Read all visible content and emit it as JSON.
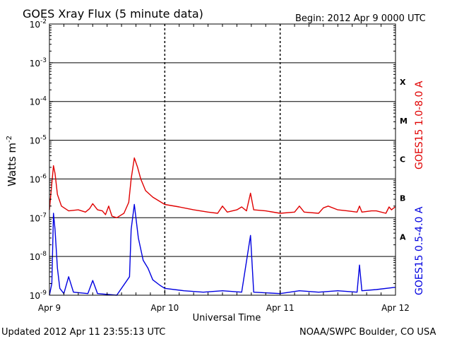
{
  "header": {
    "title": "GOES Xray Flux (5 minute data)",
    "begin": "Begin:  2012 Apr 9 0000 UTC"
  },
  "footer": {
    "updated": "Updated 2012 Apr 11 23:55:13 UTC",
    "credit": "NOAA/SWPC Boulder, CO USA"
  },
  "chart_data": {
    "type": "line",
    "title": "GOES Xray Flux (5 minute data)",
    "xlabel": "Universal Time",
    "ylabel": "Watts m",
    "ylabel_superscript": "-2",
    "yscale": "log",
    "xlim": [
      "2012-04-09T00:00",
      "2012-04-12T00:00"
    ],
    "ylim": [
      1e-09,
      0.01
    ],
    "x_ticks": [
      "Apr 9",
      "Apr 10",
      "Apr 11",
      "Apr 12"
    ],
    "y_ticks": [
      {
        "base": "10",
        "exp": "-9",
        "value": 1e-09
      },
      {
        "base": "10",
        "exp": "-8",
        "value": 1e-08
      },
      {
        "base": "10",
        "exp": "-7",
        "value": 1e-07
      },
      {
        "base": "10",
        "exp": "-6",
        "value": 1e-06
      },
      {
        "base": "10",
        "exp": "-5",
        "value": 1e-05
      },
      {
        "base": "10",
        "exp": "-4",
        "value": 0.0001
      },
      {
        "base": "10",
        "exp": "-3",
        "value": 0.001
      },
      {
        "base": "10",
        "exp": "-2",
        "value": 0.01
      }
    ],
    "flare_classes": [
      {
        "label": "A",
        "value": 3.2e-08
      },
      {
        "label": "B",
        "value": 3.2e-07
      },
      {
        "label": "C",
        "value": 3.2e-06
      },
      {
        "label": "M",
        "value": 3.2e-05
      },
      {
        "label": "X",
        "value": 0.00032
      }
    ],
    "grid": true,
    "series": [
      {
        "name": "GOES15 1.0-8.0 A",
        "color": "#e00000",
        "points": [
          [
            "2012-04-09T00:00",
            1.6e-07
          ],
          [
            "2012-04-09T00:50",
            2.2e-06
          ],
          [
            "2012-04-09T01:10",
            1.4e-06
          ],
          [
            "2012-04-09T01:40",
            4e-07
          ],
          [
            "2012-04-09T02:30",
            2e-07
          ],
          [
            "2012-04-09T04:00",
            1.5e-07
          ],
          [
            "2012-04-09T06:00",
            1.6e-07
          ],
          [
            "2012-04-09T07:30",
            1.4e-07
          ],
          [
            "2012-04-09T08:20",
            1.7e-07
          ],
          [
            "2012-04-09T09:00",
            2.3e-07
          ],
          [
            "2012-04-09T10:00",
            1.6e-07
          ],
          [
            "2012-04-09T11:00",
            1.5e-07
          ],
          [
            "2012-04-09T11:40",
            1.2e-07
          ],
          [
            "2012-04-09T12:20",
            2e-07
          ],
          [
            "2012-04-09T13:00",
            1.1e-07
          ],
          [
            "2012-04-09T14:00",
            1e-07
          ],
          [
            "2012-04-09T15:30",
            1.3e-07
          ],
          [
            "2012-04-09T16:30",
            2.5e-07
          ],
          [
            "2012-04-09T17:00",
            1e-06
          ],
          [
            "2012-04-09T17:40",
            3.5e-06
          ],
          [
            "2012-04-09T18:20",
            2e-06
          ],
          [
            "2012-04-09T19:00",
            1e-06
          ],
          [
            "2012-04-09T20:00",
            5e-07
          ],
          [
            "2012-04-09T21:30",
            3.4e-07
          ],
          [
            "2012-04-10T00:00",
            2.2e-07
          ],
          [
            "2012-04-10T03:00",
            1.9e-07
          ],
          [
            "2012-04-10T06:00",
            1.6e-07
          ],
          [
            "2012-04-10T09:00",
            1.4e-07
          ],
          [
            "2012-04-10T11:00",
            1.3e-07
          ],
          [
            "2012-04-10T12:00",
            2e-07
          ],
          [
            "2012-04-10T13:00",
            1.4e-07
          ],
          [
            "2012-04-10T15:00",
            1.6e-07
          ],
          [
            "2012-04-10T16:00",
            1.9e-07
          ],
          [
            "2012-04-10T17:00",
            1.5e-07
          ],
          [
            "2012-04-10T17:50",
            4.3e-07
          ],
          [
            "2012-04-10T18:30",
            1.6e-07
          ],
          [
            "2012-04-10T21:00",
            1.5e-07
          ],
          [
            "2012-04-11T00:00",
            1.3e-07
          ],
          [
            "2012-04-11T03:00",
            1.4e-07
          ],
          [
            "2012-04-11T04:00",
            2e-07
          ],
          [
            "2012-04-11T05:00",
            1.4e-07
          ],
          [
            "2012-04-11T08:00",
            1.3e-07
          ],
          [
            "2012-04-11T09:00",
            1.8e-07
          ],
          [
            "2012-04-11T10:00",
            2e-07
          ],
          [
            "2012-04-11T12:00",
            1.6e-07
          ],
          [
            "2012-04-11T14:00",
            1.5e-07
          ],
          [
            "2012-04-11T16:00",
            1.4e-07
          ],
          [
            "2012-04-11T16:30",
            2e-07
          ],
          [
            "2012-04-11T17:00",
            1.4e-07
          ],
          [
            "2012-04-11T19:00",
            1.5e-07
          ],
          [
            "2012-04-11T20:00",
            1.5e-07
          ],
          [
            "2012-04-11T22:00",
            1.3e-07
          ],
          [
            "2012-04-11T22:40",
            1.9e-07
          ],
          [
            "2012-04-11T23:10",
            1.6e-07
          ],
          [
            "2012-04-11T23:55",
            1.9e-07
          ]
        ]
      },
      {
        "name": "GOES15 0.5-4.0 A",
        "color": "#0000e0",
        "points": [
          [
            "2012-04-09T00:00",
            1e-09
          ],
          [
            "2012-04-09T00:30",
            2e-09
          ],
          [
            "2012-04-09T00:50",
            1.3e-07
          ],
          [
            "2012-04-09T01:10",
            5e-08
          ],
          [
            "2012-04-09T01:40",
            5e-09
          ],
          [
            "2012-04-09T02:10",
            1.5e-09
          ],
          [
            "2012-04-09T03:00",
            1.1e-09
          ],
          [
            "2012-04-09T04:00",
            3e-09
          ],
          [
            "2012-04-09T05:00",
            1.2e-09
          ],
          [
            "2012-04-09T08:00",
            1.1e-09
          ],
          [
            "2012-04-09T09:00",
            2.4e-09
          ],
          [
            "2012-04-09T10:00",
            1.1e-09
          ],
          [
            "2012-04-09T14:00",
            1e-09
          ],
          [
            "2012-04-09T16:40",
            3e-09
          ],
          [
            "2012-04-09T17:00",
            5e-08
          ],
          [
            "2012-04-09T17:40",
            2.2e-07
          ],
          [
            "2012-04-09T18:30",
            3e-08
          ],
          [
            "2012-04-09T19:30",
            8e-09
          ],
          [
            "2012-04-09T20:30",
            5e-09
          ],
          [
            "2012-04-09T21:30",
            2.5e-09
          ],
          [
            "2012-04-09T23:00",
            1.8e-09
          ],
          [
            "2012-04-10T00:00",
            1.5e-09
          ],
          [
            "2012-04-10T04:00",
            1.3e-09
          ],
          [
            "2012-04-10T08:00",
            1.2e-09
          ],
          [
            "2012-04-10T12:00",
            1.3e-09
          ],
          [
            "2012-04-10T16:00",
            1.2e-09
          ],
          [
            "2012-04-10T17:50",
            3.5e-08
          ],
          [
            "2012-04-10T18:30",
            1.2e-09
          ],
          [
            "2012-04-11T00:00",
            1.1e-09
          ],
          [
            "2012-04-11T04:00",
            1.3e-09
          ],
          [
            "2012-04-11T08:00",
            1.2e-09
          ],
          [
            "2012-04-11T12:00",
            1.3e-09
          ],
          [
            "2012-04-11T16:00",
            1.2e-09
          ],
          [
            "2012-04-11T16:30",
            6e-09
          ],
          [
            "2012-04-11T17:00",
            1.3e-09
          ],
          [
            "2012-04-11T20:00",
            1.4e-09
          ],
          [
            "2012-04-11T23:55",
            1.6e-09
          ]
        ]
      }
    ]
  }
}
